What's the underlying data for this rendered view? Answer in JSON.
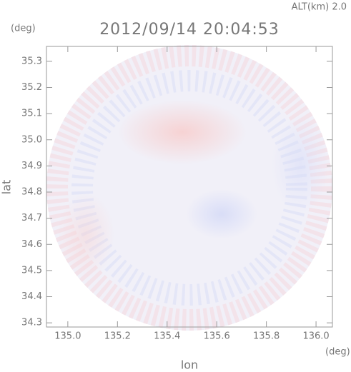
{
  "chart_data": {
    "type": "map",
    "title": "2012/09/14 20:04:53",
    "annotation": "ALT(km) 2.0",
    "x_label": "lon",
    "y_label": "lat",
    "x_unit": "(deg)",
    "y_unit": "(deg)",
    "xlim": [
      134.914,
      136.066
    ],
    "ylim": [
      34.284,
      35.357
    ],
    "xticks": [
      {
        "value": 135,
        "label": "135.0"
      },
      135.2,
      135.4,
      135.6,
      135.8,
      {
        "value": 136,
        "label": "136.0"
      }
    ],
    "yticks": [
      34.3,
      34.4,
      34.5,
      34.6,
      34.7,
      34.8,
      34.9,
      {
        "value": 35,
        "label": "35.0"
      },
      35.1,
      35.2,
      35.3
    ]
  }
}
